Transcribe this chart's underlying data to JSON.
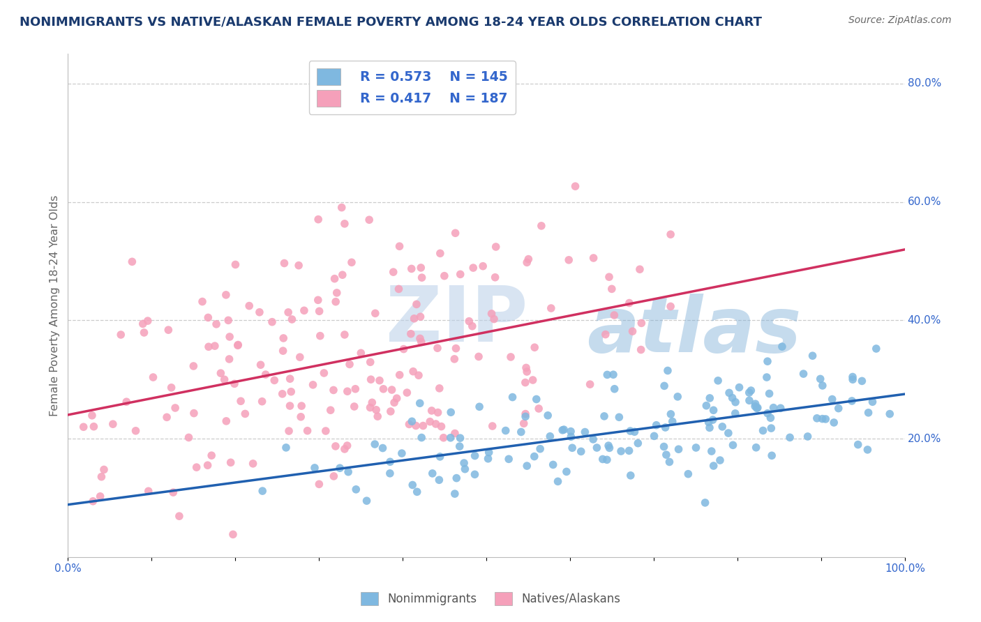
{
  "title": "NONIMMIGRANTS VS NATIVE/ALASKAN FEMALE POVERTY AMONG 18-24 YEAR OLDS CORRELATION CHART",
  "source": "Source: ZipAtlas.com",
  "ylabel": "Female Poverty Among 18-24 Year Olds",
  "watermark_top": "ZIP",
  "watermark_bot": "atlas",
  "xlim": [
    0,
    1
  ],
  "ylim": [
    0,
    0.85
  ],
  "xticks": [
    0.0,
    0.1,
    0.2,
    0.3,
    0.4,
    0.5,
    0.6,
    0.7,
    0.8,
    0.9,
    1.0
  ],
  "ytick_positions": [
    0.2,
    0.4,
    0.6,
    0.8
  ],
  "ytick_labels": [
    "20.0%",
    "40.0%",
    "60.0%",
    "80.0%"
  ],
  "xtick_labels": [
    "0.0%",
    "",
    "",
    "",
    "",
    "",
    "",
    "",
    "",
    "",
    "100.0%"
  ],
  "blue_color": "#7fb8e0",
  "pink_color": "#f5a0ba",
  "blue_line_color": "#2060b0",
  "pink_line_color": "#d03060",
  "legend_blue_R": "R = 0.573",
  "legend_blue_N": "N = 145",
  "legend_pink_R": "R = 0.417",
  "legend_pink_N": "N = 187",
  "background_color": "#ffffff",
  "grid_color": "#cccccc",
  "title_color": "#1a3a6e",
  "axis_label_color": "#666666",
  "blue_R": 0.573,
  "blue_N": 145,
  "pink_R": 0.417,
  "pink_N": 187
}
